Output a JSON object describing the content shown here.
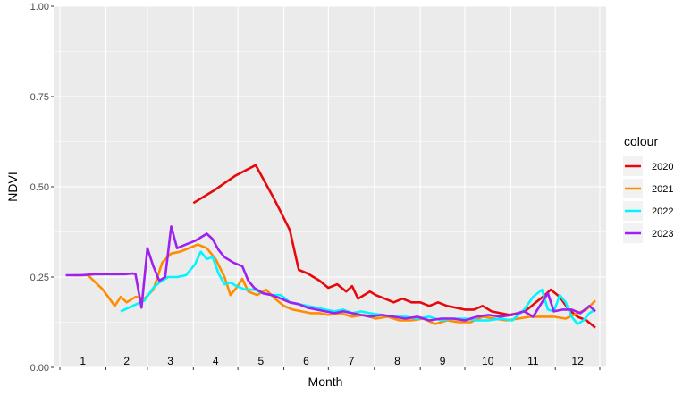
{
  "chart_data": {
    "type": "line",
    "xlabel": "Month",
    "ylabel": "NDVI",
    "ylim": [
      0,
      1
    ],
    "y_ticks": [
      "0.00",
      "0.25",
      "0.50",
      "0.75",
      "1.00"
    ],
    "y_tick_values": [
      0,
      0.25,
      0.5,
      0.75,
      1.0
    ],
    "month_labels": [
      "1",
      "2",
      "3",
      "4",
      "5",
      "6",
      "7",
      "8",
      "9",
      "10",
      "11",
      "12"
    ],
    "xlim": [
      1,
      365
    ],
    "grid": true,
    "legend_position": "right",
    "legend_title": "colour",
    "series": [
      {
        "name": "2020",
        "color": "#E8080C",
        "x": [
          91,
          105,
          119,
          133,
          145,
          150,
          156,
          162,
          168,
          172,
          176,
          182,
          188,
          194,
          198,
          202,
          206,
          210,
          214,
          220,
          226,
          232,
          238,
          244,
          250,
          256,
          262,
          268,
          274,
          280,
          286,
          292,
          298,
          304,
          310,
          316,
          322,
          328,
          332,
          338,
          344,
          350,
          356,
          362
        ],
        "y": [
          0.455,
          0.49,
          0.53,
          0.56,
          0.47,
          0.43,
          0.38,
          0.27,
          0.26,
          0.25,
          0.24,
          0.22,
          0.23,
          0.21,
          0.225,
          0.19,
          0.2,
          0.21,
          0.2,
          0.19,
          0.18,
          0.19,
          0.18,
          0.18,
          0.17,
          0.18,
          0.17,
          0.165,
          0.16,
          0.16,
          0.17,
          0.155,
          0.15,
          0.145,
          0.15,
          0.16,
          0.18,
          0.2,
          0.215,
          0.195,
          0.16,
          0.14,
          0.13,
          0.11
        ]
      },
      {
        "name": "2021",
        "color": "#FF8C00",
        "x": [
          10,
          20,
          30,
          38,
          42,
          46,
          52,
          58,
          64,
          70,
          76,
          82,
          88,
          94,
          100,
          106,
          112,
          116,
          120,
          124,
          128,
          134,
          140,
          146,
          152,
          158,
          164,
          170,
          176,
          182,
          190,
          198,
          206,
          214,
          222,
          230,
          238,
          246,
          254,
          262,
          270,
          278,
          286,
          294,
          302,
          310,
          318,
          326,
          334,
          342,
          350,
          356,
          362
        ],
        "y": [
          0.255,
          0.255,
          0.215,
          0.17,
          0.195,
          0.18,
          0.195,
          0.19,
          0.215,
          0.29,
          0.315,
          0.32,
          0.33,
          0.34,
          0.33,
          0.3,
          0.25,
          0.2,
          0.22,
          0.245,
          0.21,
          0.2,
          0.215,
          0.19,
          0.17,
          0.16,
          0.155,
          0.15,
          0.15,
          0.145,
          0.15,
          0.14,
          0.145,
          0.135,
          0.14,
          0.13,
          0.13,
          0.135,
          0.12,
          0.13,
          0.125,
          0.125,
          0.14,
          0.135,
          0.13,
          0.135,
          0.14,
          0.14,
          0.14,
          0.135,
          0.15,
          0.16,
          0.185
        ]
      },
      {
        "name": "2022",
        "color": "#00F5FF",
        "x": [
          42,
          50,
          58,
          64,
          68,
          74,
          80,
          86,
          92,
          96,
          100,
          104,
          108,
          112,
          116,
          120,
          126,
          132,
          138,
          144,
          150,
          156,
          162,
          168,
          174,
          180,
          186,
          192,
          198,
          204,
          210,
          218,
          226,
          234,
          242,
          250,
          258,
          266,
          274,
          282,
          290,
          298,
          306,
          314,
          320,
          326,
          330,
          334,
          338,
          342,
          346,
          350,
          354,
          358,
          362
        ],
        "y": [
          0.155,
          0.17,
          0.185,
          0.22,
          0.235,
          0.25,
          0.25,
          0.255,
          0.285,
          0.32,
          0.3,
          0.305,
          0.26,
          0.23,
          0.235,
          0.225,
          0.215,
          0.215,
          0.205,
          0.2,
          0.2,
          0.18,
          0.175,
          0.17,
          0.165,
          0.16,
          0.155,
          0.16,
          0.15,
          0.155,
          0.15,
          0.145,
          0.14,
          0.14,
          0.135,
          0.14,
          0.13,
          0.135,
          0.135,
          0.13,
          0.13,
          0.135,
          0.13,
          0.16,
          0.195,
          0.215,
          0.16,
          0.155,
          0.2,
          0.18,
          0.14,
          0.12,
          0.13,
          0.15,
          0.16
        ]
      },
      {
        "name": "2023",
        "color": "#A020F0",
        "x": [
          5,
          15,
          25,
          35,
          45,
          50,
          52,
          56,
          60,
          64,
          68,
          72,
          76,
          80,
          86,
          92,
          96,
          100,
          104,
          108,
          112,
          118,
          124,
          128,
          132,
          138,
          144,
          150,
          156,
          162,
          168,
          174,
          180,
          186,
          192,
          198,
          204,
          210,
          218,
          226,
          234,
          242,
          250,
          258,
          266,
          274,
          282,
          290,
          298,
          306,
          314,
          320,
          326,
          330,
          334,
          340,
          346,
          352,
          358,
          362
        ],
        "y": [
          0.255,
          0.255,
          0.258,
          0.258,
          0.258,
          0.26,
          0.258,
          0.165,
          0.33,
          0.28,
          0.24,
          0.25,
          0.39,
          0.33,
          0.34,
          0.35,
          0.36,
          0.37,
          0.355,
          0.325,
          0.305,
          0.29,
          0.28,
          0.24,
          0.22,
          0.205,
          0.2,
          0.19,
          0.18,
          0.175,
          0.165,
          0.16,
          0.155,
          0.15,
          0.155,
          0.15,
          0.145,
          0.14,
          0.145,
          0.14,
          0.135,
          0.14,
          0.13,
          0.135,
          0.135,
          0.13,
          0.14,
          0.145,
          0.14,
          0.145,
          0.155,
          0.14,
          0.18,
          0.205,
          0.155,
          0.16,
          0.16,
          0.15,
          0.17,
          0.155
        ]
      }
    ]
  }
}
